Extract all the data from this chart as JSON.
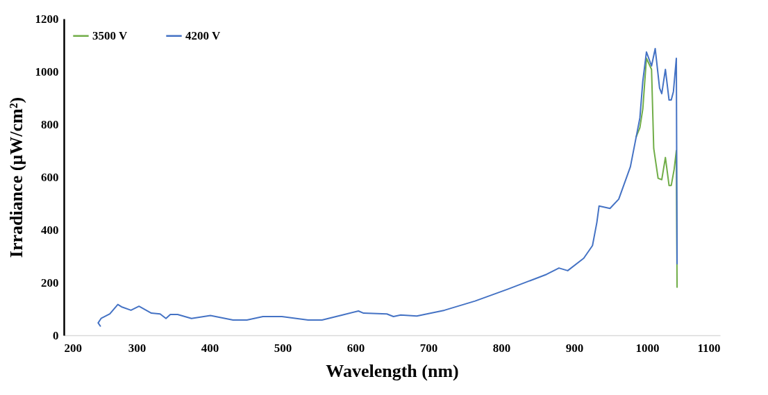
{
  "chart_data": {
    "type": "line",
    "xlabel": "Wavelength (nm)",
    "ylabel": "Irradiance (µW/cm²)",
    "xlim": [
      200,
      1100
    ],
    "xticks": [
      200,
      300,
      400,
      500,
      600,
      700,
      800,
      900,
      1000,
      1100
    ],
    "ylim": [
      0,
      1200
    ],
    "yticks": [
      0,
      200,
      400,
      600,
      800,
      1000,
      1200
    ],
    "grid": false,
    "legend": "top left",
    "line_style": "solid",
    "marker": "none",
    "series": [
      {
        "name": "3500 V",
        "color": "#70ad47",
        "x": [
          985,
          990,
          994,
          999,
          1006,
          1009,
          1015,
          1020,
          1025,
          1030,
          1033,
          1037,
          1040,
          1041
        ],
        "values": [
          753,
          787,
          858,
          1050,
          1008,
          708,
          595,
          590,
          674,
          568,
          568,
          629,
          700,
          182
        ]
      },
      {
        "name": "4200 V",
        "color": "#4472c4",
        "x": [
          250,
          247,
          251,
          263,
          274,
          279,
          292,
          303,
          320,
          332,
          340,
          346,
          356,
          375,
          401,
          432,
          451,
          473,
          499,
          535,
          554,
          582,
          604,
          611,
          643,
          652,
          662,
          684,
          722,
          764,
          808,
          862,
          879,
          891,
          913,
          925,
          931,
          934,
          949,
          961,
          977,
          985,
          990,
          994,
          999,
          1006,
          1011,
          1017,
          1020,
          1025,
          1030,
          1033,
          1036,
          1040,
          1041
        ],
        "values": [
          35,
          47,
          64,
          81,
          117,
          108,
          95,
          110,
          84,
          81,
          64,
          79,
          79,
          64,
          75,
          58,
          58,
          71,
          71,
          58,
          58,
          77,
          92,
          84,
          81,
          71,
          77,
          73,
          95,
          130,
          174,
          231,
          255,
          245,
          292,
          340,
          428,
          490,
          481,
          516,
          639,
          753,
          824,
          963,
          1074,
          1021,
          1087,
          937,
          916,
          1008,
          892,
          892,
          924,
          1050,
          271
        ]
      }
    ]
  }
}
